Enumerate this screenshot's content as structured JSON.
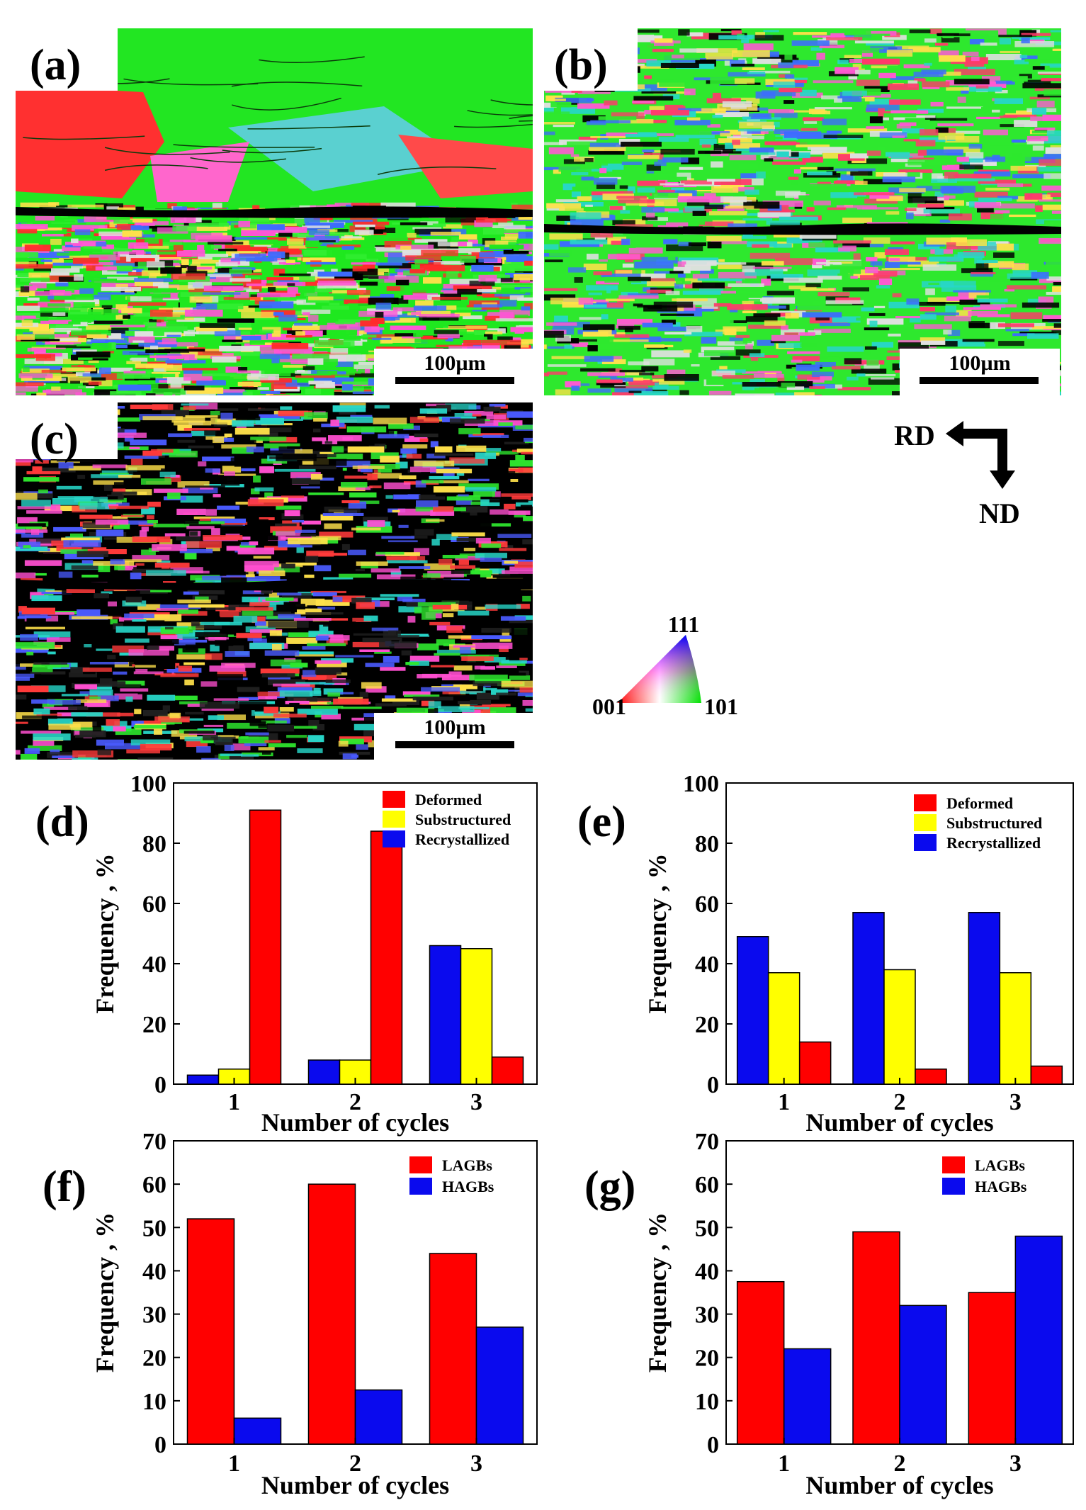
{
  "figure": {
    "panel_labels": [
      "(a)",
      "(b)",
      "(c)",
      "(d)",
      "(e)",
      "(f)",
      "(g)"
    ],
    "scale_bar_label": "100µm",
    "orientation": {
      "rd_label": "RD",
      "nd_label": "ND"
    },
    "ipf_key": {
      "top_label": "111",
      "left_label": "001",
      "right_label": "101"
    },
    "ebsd_maps": [
      {
        "panel": "(a)",
        "palette": [
          "#1fe81f",
          "#33ee33",
          "#ff2b2b",
          "#e0e0e0",
          "#ff55d5",
          "#3d6bff",
          "#000000",
          "#ffe14a"
        ]
      },
      {
        "panel": "(b)",
        "palette": [
          "#2ee82e",
          "#ff3a6a",
          "#ff5ad2",
          "#3d6bff",
          "#ffe14a",
          "#000000",
          "#27d6c8",
          "#e0e0e0"
        ]
      },
      {
        "panel": "(c)",
        "palette": [
          "#000000",
          "#ff4fd0",
          "#2ee82e",
          "#4a5bff",
          "#ff3a3a",
          "#202020",
          "#27d6c8",
          "#ffe14a"
        ]
      }
    ]
  },
  "chart_data": [
    {
      "panel": "(d)",
      "type": "bar",
      "categories": [
        "1",
        "2",
        "3"
      ],
      "series": [
        {
          "name": "Recrystallized",
          "color": "#0a0aee",
          "values": [
            3,
            8,
            46
          ]
        },
        {
          "name": "Substructured",
          "color": "#ffff00",
          "values": [
            5,
            8,
            45
          ]
        },
        {
          "name": "Deformed",
          "color": "#ff0000",
          "values": [
            91,
            84,
            9
          ]
        }
      ],
      "legend": [
        {
          "name": "Deformed",
          "color": "#ff0000"
        },
        {
          "name": "Substructured",
          "color": "#ffff00"
        },
        {
          "name": "Recrystallized",
          "color": "#0a0aee"
        }
      ],
      "xlabel": "Number of cycles",
      "ylabel": "Frequency , %",
      "ylim": [
        0,
        100
      ],
      "yticks": [
        0,
        20,
        40,
        60,
        80,
        100
      ]
    },
    {
      "panel": "(e)",
      "type": "bar",
      "categories": [
        "1",
        "2",
        "3"
      ],
      "series": [
        {
          "name": "Recrystallized",
          "color": "#0a0aee",
          "values": [
            49,
            57,
            57
          ]
        },
        {
          "name": "Substructured",
          "color": "#ffff00",
          "values": [
            37,
            38,
            37
          ]
        },
        {
          "name": "Deformed",
          "color": "#ff0000",
          "values": [
            14,
            5,
            6
          ]
        }
      ],
      "legend": [
        {
          "name": "Deformed",
          "color": "#ff0000"
        },
        {
          "name": "Substructured",
          "color": "#ffff00"
        },
        {
          "name": "Recrystallized",
          "color": "#0a0aee"
        }
      ],
      "xlabel": "Number of cycles",
      "ylabel": "Frequency , %",
      "ylim": [
        0,
        100
      ],
      "yticks": [
        0,
        20,
        40,
        60,
        80,
        100
      ]
    },
    {
      "panel": "(f)",
      "type": "bar",
      "categories": [
        "1",
        "2",
        "3"
      ],
      "series": [
        {
          "name": "LAGBs",
          "color": "#ff0000",
          "values": [
            52,
            60,
            44
          ]
        },
        {
          "name": "HAGBs",
          "color": "#0a0aee",
          "values": [
            6,
            12.5,
            27
          ]
        }
      ],
      "legend": [
        {
          "name": "LAGBs",
          "color": "#ff0000"
        },
        {
          "name": "HAGBs",
          "color": "#0a0aee"
        }
      ],
      "xlabel": "Number of cycles",
      "ylabel": "Frequency , %",
      "ylim": [
        0,
        70
      ],
      "yticks": [
        0,
        10,
        20,
        30,
        40,
        50,
        60,
        70
      ]
    },
    {
      "panel": "(g)",
      "type": "bar",
      "categories": [
        "1",
        "2",
        "3"
      ],
      "series": [
        {
          "name": "LAGBs",
          "color": "#ff0000",
          "values": [
            37.5,
            49,
            35
          ]
        },
        {
          "name": "HAGBs",
          "color": "#0a0aee",
          "values": [
            22,
            32,
            48
          ]
        }
      ],
      "legend": [
        {
          "name": "LAGBs",
          "color": "#ff0000"
        },
        {
          "name": "HAGBs",
          "color": "#0a0aee"
        }
      ],
      "xlabel": "Number of cycles",
      "ylabel": "Frequency , %",
      "ylim": [
        0,
        70
      ],
      "yticks": [
        0,
        10,
        20,
        30,
        40,
        50,
        60,
        70
      ]
    }
  ]
}
